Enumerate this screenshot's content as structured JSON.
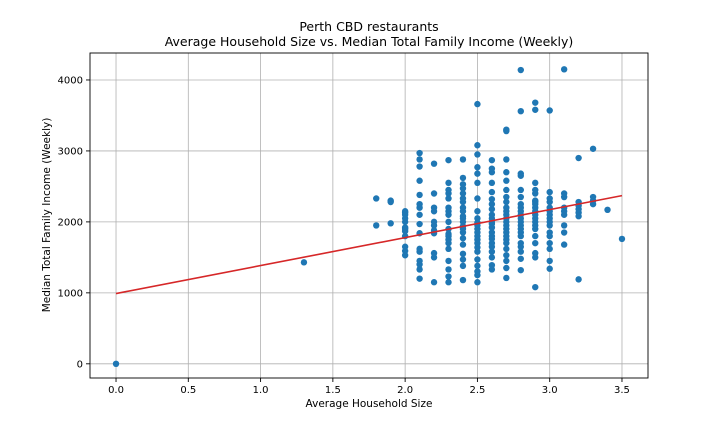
{
  "chart_data": {
    "type": "scatter",
    "title": "Perth CBD restaurants",
    "subtitle": "Average Household Size vs. Median Total Family Income (Weekly)",
    "xlabel": "Average Household Size",
    "ylabel": "Median Total Family Income (Weekly)",
    "xlim": [
      -0.18,
      3.68
    ],
    "ylim": [
      -200,
      4380
    ],
    "xticks": [
      "0.0",
      "0.5",
      "1.0",
      "1.5",
      "2.0",
      "2.5",
      "3.0",
      "3.5"
    ],
    "yticks": [
      "0",
      "1000",
      "2000",
      "3000",
      "4000"
    ],
    "grid": true,
    "point_color": "#1f77b4",
    "trend_color": "#d62728",
    "trendline": {
      "x": [
        0.0,
        3.5
      ],
      "y": [
        990,
        2370
      ]
    },
    "points": {
      "x": [
        0.0,
        1.3,
        1.8,
        1.8,
        1.9,
        1.9,
        1.9,
        2.0,
        2.0,
        2.0,
        2.0,
        2.0,
        2.0,
        2.0,
        2.0,
        2.0,
        2.0,
        2.0,
        2.0,
        2.1,
        2.1,
        2.1,
        2.1,
        2.1,
        2.1,
        2.1,
        2.1,
        2.1,
        2.1,
        2.1,
        2.1,
        2.1,
        2.1,
        2.1,
        2.1,
        2.2,
        2.2,
        2.2,
        2.2,
        2.2,
        2.2,
        2.2,
        2.2,
        2.2,
        2.2,
        2.2,
        2.3,
        2.3,
        2.3,
        2.3,
        2.3,
        2.3,
        2.3,
        2.3,
        2.3,
        2.3,
        2.3,
        2.3,
        2.3,
        2.3,
        2.3,
        2.3,
        2.3,
        2.3,
        2.3,
        2.4,
        2.4,
        2.4,
        2.4,
        2.4,
        2.4,
        2.4,
        2.4,
        2.4,
        2.4,
        2.4,
        2.4,
        2.4,
        2.4,
        2.4,
        2.4,
        2.4,
        2.4,
        2.4,
        2.4,
        2.4,
        2.5,
        2.5,
        2.5,
        2.5,
        2.5,
        2.5,
        2.5,
        2.5,
        2.5,
        2.5,
        2.5,
        2.5,
        2.5,
        2.5,
        2.5,
        2.5,
        2.5,
        2.5,
        2.5,
        2.5,
        2.5,
        2.5,
        2.5,
        2.6,
        2.6,
        2.6,
        2.6,
        2.6,
        2.6,
        2.6,
        2.6,
        2.6,
        2.6,
        2.6,
        2.6,
        2.6,
        2.6,
        2.6,
        2.6,
        2.6,
        2.6,
        2.6,
        2.6,
        2.6,
        2.6,
        2.7,
        2.7,
        2.7,
        2.7,
        2.7,
        2.7,
        2.7,
        2.7,
        2.7,
        2.7,
        2.7,
        2.7,
        2.7,
        2.7,
        2.7,
        2.7,
        2.7,
        2.7,
        2.7,
        2.7,
        2.7,
        2.7,
        2.7,
        2.7,
        2.8,
        2.8,
        2.8,
        2.8,
        2.8,
        2.8,
        2.8,
        2.8,
        2.8,
        2.8,
        2.8,
        2.8,
        2.8,
        2.8,
        2.8,
        2.8,
        2.8,
        2.8,
        2.8,
        2.8,
        2.8,
        2.9,
        2.9,
        2.9,
        2.9,
        2.9,
        2.9,
        2.9,
        2.9,
        2.9,
        2.9,
        2.9,
        2.9,
        2.9,
        2.9,
        2.9,
        2.9,
        2.9,
        2.9,
        2.9,
        2.9,
        3.0,
        3.0,
        3.0,
        3.0,
        3.0,
        3.0,
        3.0,
        3.0,
        3.0,
        3.0,
        3.0,
        3.0,
        3.0,
        3.0,
        3.0,
        3.0,
        3.1,
        3.1,
        3.1,
        3.1,
        3.1,
        3.1,
        3.1,
        3.1,
        3.1,
        3.2,
        3.2,
        3.2,
        3.2,
        3.2,
        3.2,
        3.2,
        3.3,
        3.3,
        3.3,
        3.3,
        3.4,
        3.5
      ],
      "y": [
        0,
        1430,
        1950,
        2330,
        1980,
        2280,
        2300,
        1530,
        1590,
        1650,
        1800,
        1870,
        1900,
        1920,
        2000,
        2050,
        2100,
        2130,
        2150,
        1200,
        1330,
        1400,
        1450,
        1580,
        1620,
        1840,
        1970,
        2100,
        2200,
        2250,
        2380,
        2580,
        2780,
        2880,
        2970,
        1150,
        1500,
        1560,
        1840,
        1880,
        1950,
        2000,
        2150,
        2200,
        2400,
        2820,
        1150,
        1230,
        1330,
        1450,
        1620,
        1700,
        1750,
        1800,
        1830,
        1900,
        2000,
        2100,
        2150,
        2200,
        2330,
        2400,
        2450,
        2550,
        2870,
        1180,
        1380,
        1470,
        1550,
        1680,
        1770,
        1850,
        1900,
        1940,
        2000,
        2050,
        2080,
        2150,
        2200,
        2280,
        2330,
        2400,
        2470,
        2530,
        2620,
        2880,
        1150,
        1250,
        1300,
        1380,
        1470,
        1580,
        1640,
        1700,
        1750,
        1800,
        1850,
        1900,
        1950,
        1990,
        2050,
        2150,
        2330,
        2550,
        2680,
        2770,
        2950,
        3080,
        3660,
        1330,
        1390,
        1500,
        1580,
        1650,
        1700,
        1760,
        1800,
        1850,
        1920,
        1970,
        2000,
        2050,
        2100,
        2180,
        2250,
        2320,
        2420,
        2550,
        2700,
        2870,
        2750,
        1210,
        1350,
        1450,
        1530,
        1620,
        1700,
        1750,
        1800,
        1850,
        1900,
        1950,
        2000,
        2050,
        2100,
        2150,
        2200,
        2280,
        2350,
        2450,
        2580,
        2700,
        2880,
        3280,
        3300,
        1320,
        1480,
        1580,
        1650,
        1700,
        1800,
        1850,
        1900,
        1950,
        2000,
        2050,
        2100,
        2150,
        2200,
        2250,
        2350,
        2450,
        2680,
        2650,
        3560,
        4140,
        1080,
        1500,
        1560,
        1700,
        1800,
        1900,
        1950,
        2000,
        2050,
        2100,
        2150,
        2200,
        2250,
        2300,
        2400,
        2450,
        2550,
        3580,
        3680,
        2280,
        1340,
        1450,
        1620,
        1700,
        1800,
        1850,
        1950,
        2000,
        2050,
        2100,
        2150,
        2200,
        2280,
        2330,
        2420,
        3570,
        1680,
        1850,
        1950,
        2100,
        2150,
        2200,
        2350,
        2400,
        4150,
        1190,
        2080,
        2130,
        2180,
        2230,
        2280,
        2900,
        2250,
        2300,
        2350,
        3030,
        2170,
        1760
      ]
    }
  }
}
